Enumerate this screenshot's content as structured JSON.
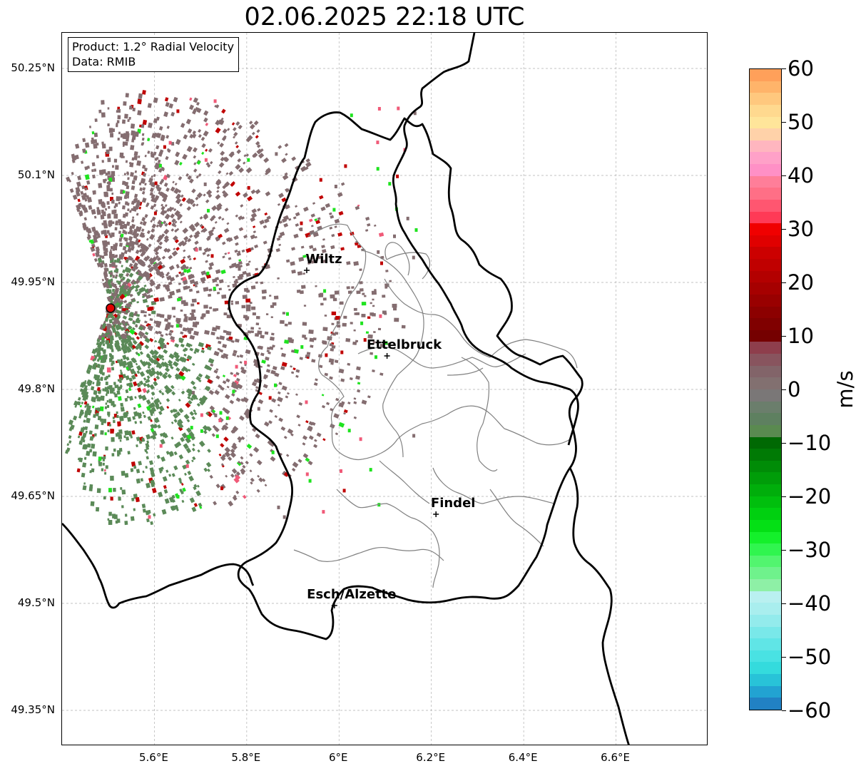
{
  "title": "02.06.2025 22:18 UTC",
  "info_box": {
    "product": "Product: 1.2° Radial Velocity",
    "data": "Data: RMIB"
  },
  "lat_ticks": [
    "50.25°N",
    "50.1°N",
    "49.95°N",
    "49.8°N",
    "49.65°N",
    "49.5°N",
    "49.35°N"
  ],
  "lon_ticks": [
    "5.6°E",
    "5.8°E",
    "6°E",
    "6.2°E",
    "6.4°E",
    "6.6°E"
  ],
  "extent": {
    "lon_min": 5.4,
    "lon_max": 6.8,
    "lat_min": 49.3,
    "lat_max": 50.3
  },
  "places": [
    {
      "name": "Wiltz",
      "lon": 5.93,
      "lat": 49.967
    },
    {
      "name": "Ettelbruck",
      "lon": 6.104,
      "lat": 49.847
    },
    {
      "name": "Findel",
      "lon": 6.21,
      "lat": 49.625
    },
    {
      "name": "Esch/Alzette",
      "lon": 5.99,
      "lat": 49.497
    }
  ],
  "radar_site": {
    "lon": 5.505,
    "lat": 49.914,
    "color": "#e00000"
  },
  "colorbar": {
    "label": "m/s",
    "min": -60,
    "max": 60,
    "ticks": [
      "60",
      "50",
      "40",
      "30",
      "20",
      "10",
      "0",
      "−10",
      "−20",
      "−30",
      "−40",
      "−50",
      "−60"
    ],
    "colors": [
      "#2181c4",
      "#22a3d2",
      "#28c3d8",
      "#34dbdd",
      "#49e2e3",
      "#60e5e6",
      "#79e8e9",
      "#93ebec",
      "#a9eeee",
      "#b9f0f0",
      "#8ef0a6",
      "#6ff28c",
      "#52f56f",
      "#30f54f",
      "#14f02b",
      "#04e015",
      "#00d010",
      "#00bf0d",
      "#00ae0b",
      "#009d09",
      "#008c07",
      "#007a05",
      "#006903",
      "#5a8a50",
      "#5e8060",
      "#6b7e6c",
      "#7a7777",
      "#827070",
      "#826469",
      "#88545e",
      "#8e3e4c",
      "#750000",
      "#800000",
      "#8c0000",
      "#990000",
      "#a60000",
      "#b30000",
      "#c00000",
      "#cc0000",
      "#e00000",
      "#f00000",
      "#ff3a56",
      "#ff5670",
      "#ff6f86",
      "#ff7e99",
      "#ff90c6",
      "#ffa1c8",
      "#ffb6bf",
      "#ffd2a9",
      "#ffe59a",
      "#ffd98f",
      "#ffc87e",
      "#ffb46a",
      "#ffa05a"
    ]
  },
  "colors": {
    "border_country": "#000000",
    "border_canton": "#808080",
    "grid": "#b0b0b0",
    "echo_dominant": "#846d70",
    "echo_green": "#5b8a58",
    "echo_red": "#c00000",
    "echo_bright_green": "#1fe31f",
    "echo_pink": "#f05a78"
  }
}
